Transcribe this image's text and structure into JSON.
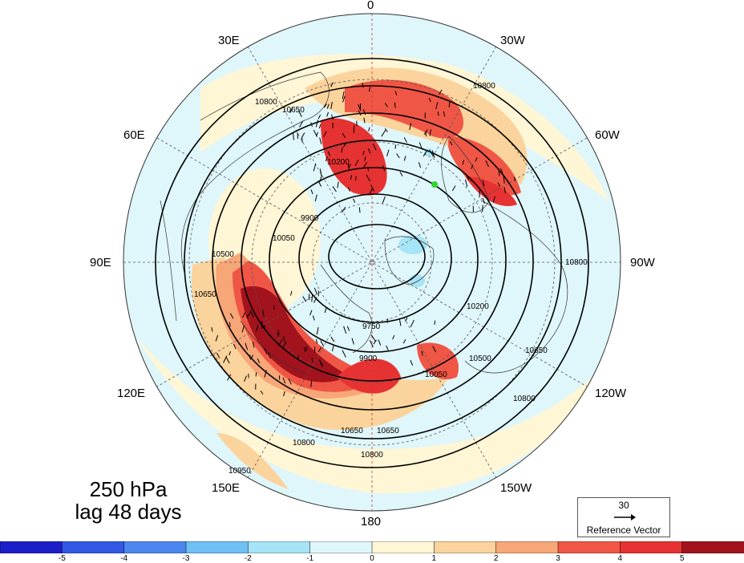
{
  "meridian_labels": {
    "lon_0": "0",
    "lon_30w": "30W",
    "lon_60w": "60W",
    "lon_90w": "90W",
    "lon_120w": "120W",
    "lon_150w": "150W",
    "lon_180": "180",
    "lon_150e": "150E",
    "lon_120e": "120E",
    "lon_90e": "90E",
    "lon_60e": "60E",
    "lon_30e": "30E"
  },
  "title": {
    "level": "250 hPa",
    "lag": "lag 48 days"
  },
  "reference_vector": {
    "value": "30",
    "label": "Reference Vector"
  },
  "contour_labels": [
    "10800",
    "10650",
    "10500",
    "10200",
    "10050",
    "9900",
    "9750",
    "10950"
  ],
  "colorbar": {
    "ticks": [
      "-5",
      "-4",
      "-3",
      "-2",
      "-1",
      "0",
      "1",
      "2",
      "3",
      "4",
      "5"
    ],
    "colors": [
      "#1c1fc8",
      "#3258e6",
      "#4c86ef",
      "#6fc0f4",
      "#a6e4f7",
      "#dff6fa",
      "#fff6d6",
      "#fbd39c",
      "#f7a677",
      "#ef5645",
      "#e63232",
      "#a3131d"
    ]
  },
  "marker_color": "#2ed62e"
}
